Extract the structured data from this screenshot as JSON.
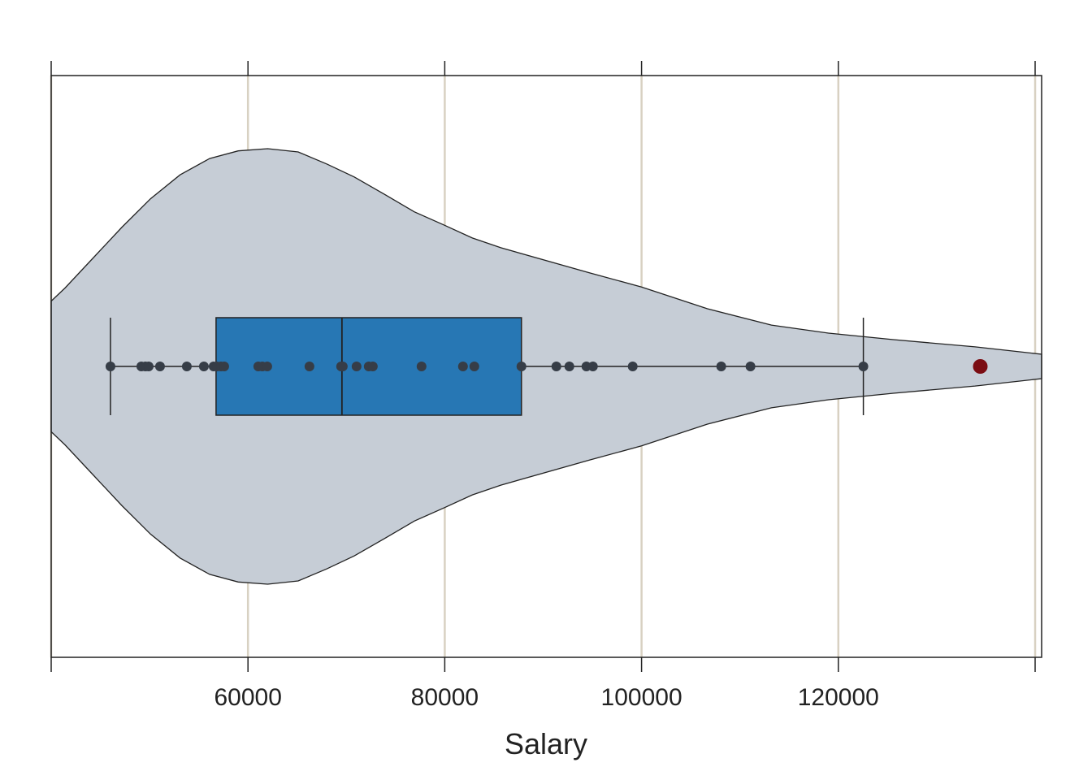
{
  "chart_data": {
    "type": "violin-box-strip",
    "title": "",
    "xlabel": "Salary",
    "ylabel": "",
    "xlim": [
      40000,
      140660
    ],
    "x_ticks": [
      40000,
      60000,
      80000,
      100000,
      120000,
      140000
    ],
    "x_tick_labels": [
      "",
      "60000",
      "80000",
      "100000",
      "120000",
      ""
    ],
    "grid": "vertical",
    "box": {
      "whisker_low": 46025,
      "q1": 56756,
      "median": 69550,
      "q3": 87792,
      "whisker_high": 122542
    },
    "points": [
      46025,
      49162,
      49575,
      49905,
      51060,
      53785,
      55518,
      56508,
      56838,
      57251,
      57581,
      61048,
      61460,
      61956,
      66248,
      69467,
      69633,
      71036,
      72274,
      72687,
      77640,
      81850,
      83005,
      87792,
      91342,
      92662,
      94396,
      95056,
      99100,
      108097,
      111069,
      122542
    ],
    "outliers": [
      134426
    ],
    "violin_density": [
      [
        40000,
        0.3
      ],
      [
        41400,
        0.36
      ],
      [
        44300,
        0.5
      ],
      [
        47200,
        0.64
      ],
      [
        50100,
        0.77
      ],
      [
        53100,
        0.88
      ],
      [
        56100,
        0.955
      ],
      [
        59000,
        0.99
      ],
      [
        62000,
        1.0
      ],
      [
        65100,
        0.985
      ],
      [
        68000,
        0.93
      ],
      [
        70800,
        0.87
      ],
      [
        73900,
        0.79
      ],
      [
        76900,
        0.71
      ],
      [
        79900,
        0.65
      ],
      [
        82800,
        0.59
      ],
      [
        85700,
        0.545
      ],
      [
        94700,
        0.43
      ],
      [
        100000,
        0.365
      ],
      [
        106700,
        0.265
      ],
      [
        113200,
        0.19
      ],
      [
        119000,
        0.153
      ],
      [
        125600,
        0.123
      ],
      [
        133900,
        0.09
      ],
      [
        140660,
        0.056
      ]
    ],
    "colors": {
      "violin": "#c6cdd6",
      "box": "#2777b4",
      "points": "#363d47",
      "outlier": "#7b0c12",
      "grid": "#d8d1c2",
      "axis": "#222222"
    }
  }
}
